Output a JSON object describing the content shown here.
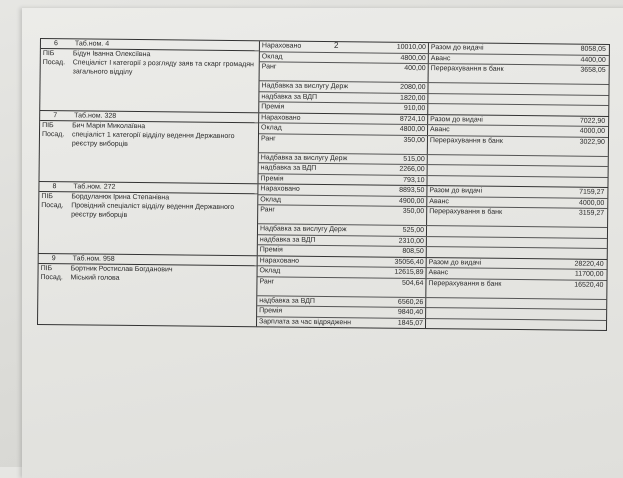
{
  "page_number": "2",
  "records": [
    {
      "num": "6",
      "tab": "Таб.ном. 4",
      "pib_label": "ПІБ",
      "name": "Бідун Іванна Олексіївна",
      "pos_label": "Посад.",
      "position": "Спеціаліст І категорії з розгляду заяв та скарг громадян загального відділу",
      "left_rows": [
        {
          "label": "Нараховано",
          "value": "10010,00"
        },
        {
          "label": "Оклад",
          "value": "4800,00"
        },
        {
          "label": "Ранг",
          "value": "400,00"
        },
        {
          "label": "Надбавка за вислугу Держ",
          "value": "2080,00"
        },
        {
          "label": "надбавка за ВДП",
          "value": "1820,00"
        },
        {
          "label": "Премія",
          "value": "910,00"
        }
      ],
      "right_rows": [
        {
          "label": "Разом до видачі",
          "value": "8058,05"
        },
        {
          "label": "Аванс",
          "value": "4400,00"
        },
        {
          "label": "Перерахування в банк",
          "value": "3658,05"
        }
      ]
    },
    {
      "num": "7",
      "tab": "Таб.ном. 328",
      "pib_label": "ПІБ",
      "name": "Бич Марія Миколаївна",
      "pos_label": "Посад.",
      "position": "спеціаліст 1 категорії відділу ведення Державного реєстру виборців",
      "left_rows": [
        {
          "label": "Нараховано",
          "value": "8724,10"
        },
        {
          "label": "Оклад",
          "value": "4800,00"
        },
        {
          "label": "Ранг",
          "value": "350,00"
        },
        {
          "label": "Надбавка за вислугу Держ",
          "value": "515,00"
        },
        {
          "label": "надбавка за ВДП",
          "value": "2266,00"
        },
        {
          "label": "Премія",
          "value": "793,10"
        }
      ],
      "right_rows": [
        {
          "label": "Разом до видачі",
          "value": "7022,90"
        },
        {
          "label": "Аванс",
          "value": "4000,00"
        },
        {
          "label": "Перерахування в банк",
          "value": "3022,90"
        }
      ]
    },
    {
      "num": "8",
      "tab": "Таб.ном. 272",
      "pib_label": "ПІБ",
      "name": "Бордуланюк Ірина Степанівна",
      "pos_label": "Посад.",
      "position": "Провідний спеціаліст відділу ведення Державного реєстру виборців",
      "left_rows": [
        {
          "label": "Нараховано",
          "value": "8893,50"
        },
        {
          "label": "Оклад",
          "value": "4900,00"
        },
        {
          "label": "Ранг",
          "value": "350,00"
        },
        {
          "label": "Надбавка за вислугу Держ",
          "value": "525,00"
        },
        {
          "label": "надбавка за ВДП",
          "value": "2310,00"
        },
        {
          "label": "Премія",
          "value": "808,50"
        }
      ],
      "right_rows": [
        {
          "label": "Разом до видачі",
          "value": "7159,27"
        },
        {
          "label": "Аванс",
          "value": "4000,00"
        },
        {
          "label": "Перерахування в банк",
          "value": "3159,27"
        }
      ]
    },
    {
      "num": "9",
      "tab": "Таб.ном. 958",
      "pib_label": "ПІБ",
      "name": "Бортник Ростислав Богданович",
      "pos_label": "Посад.",
      "position": "Міський голова",
      "left_rows": [
        {
          "label": "Нараховано",
          "value": "35056,40"
        },
        {
          "label": "Оклад",
          "value": "12615,89"
        },
        {
          "label": "Ранг",
          "value": "504,64"
        },
        {
          "label": "надбавка за ВДП",
          "value": "6560,26"
        },
        {
          "label": "Премія",
          "value": "9840,40"
        },
        {
          "label": "Зарплата за час відрядження",
          "value": "1845,07"
        }
      ],
      "right_rows": [
        {
          "label": "Разом до видачі",
          "value": "28220,40"
        },
        {
          "label": "Аванс",
          "value": "11700,00"
        },
        {
          "label": "Перерахування в банк",
          "value": "16520,40"
        }
      ]
    }
  ]
}
